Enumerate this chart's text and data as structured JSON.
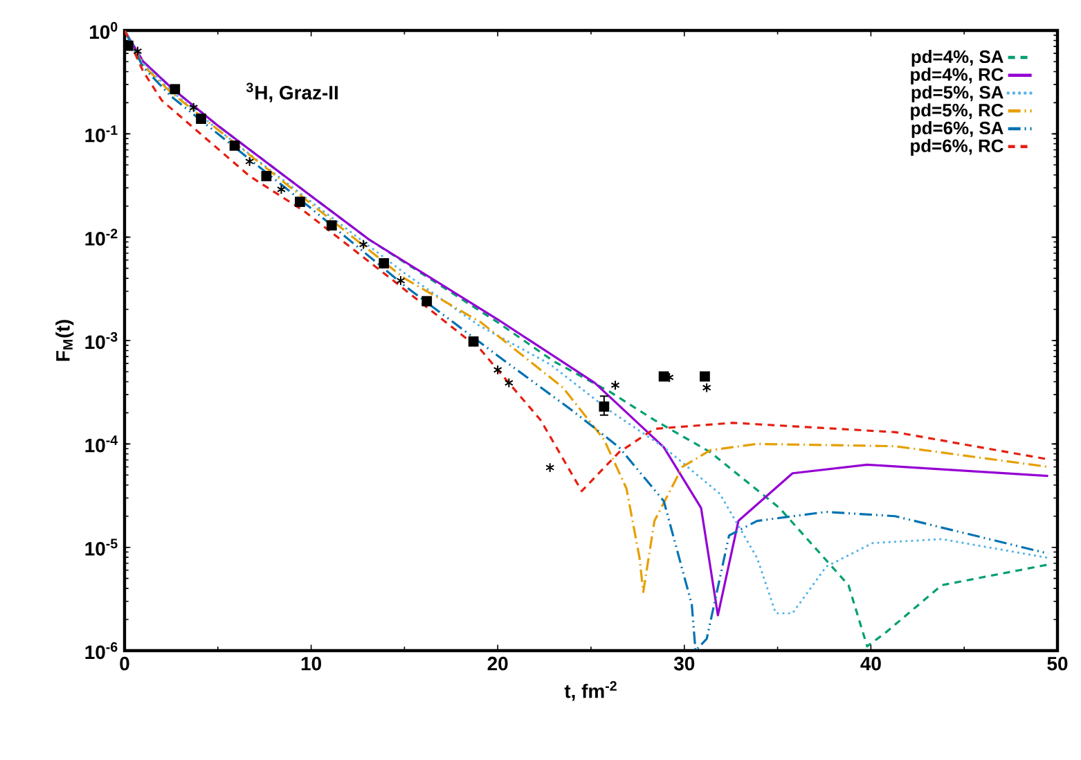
{
  "chart_data": {
    "type": "line",
    "xlabel": "t, fm$^{-2}$",
    "ylabel": "F$_{M}$(t)",
    "annotations": [
      "$^{3}$H, Graz-II"
    ],
    "log": "y",
    "legend": "top right",
    "grid": false,
    "xlim": [
      0,
      50
    ],
    "xticks": [
      0,
      10,
      20,
      30,
      40,
      50
    ],
    "ylim": [
      1e-06,
      1
    ],
    "yticks": [
      {
        "value": 1e-06,
        "label": "10$^{-6}$"
      },
      {
        "value": 1e-05,
        "label": "10$^{-5}$"
      },
      {
        "value": 0.0001,
        "label": "10$^{-4}$"
      },
      {
        "value": 0.001,
        "label": "10$^{-3}$"
      },
      {
        "value": 0.01,
        "label": "10$^{-2}$"
      },
      {
        "value": 0.1,
        "label": "10$^{-1}$"
      },
      {
        "value": 1,
        "label": "10$^{0}$"
      }
    ],
    "series": [
      {
        "name": "pd=4%, SA",
        "color": "#009e73",
        "line_style": "dashed",
        "x": [
          0,
          1,
          2.5,
          5,
          10,
          13.1,
          20,
          23,
          26,
          28.4,
          31.4,
          35.1,
          38.8,
          39.8,
          40.8,
          43.8,
          49.5
        ],
        "values": [
          1,
          0.5,
          0.28,
          0.12,
          0.025,
          0.0095,
          0.0015,
          0.00063,
          0.00032,
          0.00017,
          8.3e-05,
          2.4e-05,
          4.3e-06,
          1.1e-06,
          1.5e-06,
          4.3e-06,
          6.8e-06
        ]
      },
      {
        "name": "pd=4%, RC",
        "color": "#9400d3",
        "line_style": "solid",
        "x": [
          0,
          1,
          2.5,
          5,
          10,
          13.1,
          20,
          25.2,
          28.9,
          30.9,
          31.8,
          32.9,
          35.8,
          39.8,
          49.5
        ],
        "values": [
          1,
          0.5,
          0.28,
          0.12,
          0.025,
          0.0095,
          0.0016,
          0.00039,
          9.3e-05,
          2.4e-05,
          2.2e-06,
          1.8e-05,
          5.2e-05,
          6.3e-05,
          4.9e-05
        ]
      },
      {
        "name": "pd=5%, SA",
        "color": "#56b4e9",
        "line_style": "dotted",
        "x": [
          0,
          1,
          2.5,
          5,
          10,
          15,
          19,
          22.8,
          26,
          28.9,
          31.9,
          33.9,
          34.9,
          35.8,
          37.6,
          40.1,
          43.8,
          49.5
        ],
        "values": [
          1,
          0.48,
          0.26,
          0.11,
          0.022,
          0.0045,
          0.0014,
          0.00059,
          0.00021,
          9.3e-05,
          3.3e-05,
          7.9e-06,
          2.3e-06,
          2.3e-06,
          6.5e-06,
          1.1e-05,
          1.2e-05,
          7.9e-06
        ]
      },
      {
        "name": "pd=5%, RC",
        "color": "#e69f00",
        "line_style": "dashdot",
        "x": [
          0,
          1,
          2.5,
          5,
          10,
          15,
          19.1,
          23.5,
          25.7,
          26.9,
          27.6,
          27.8,
          28.4,
          29.9,
          31.4,
          33.9,
          41.3,
          49.5
        ],
        "values": [
          1,
          0.46,
          0.25,
          0.11,
          0.021,
          0.004,
          0.0015,
          0.00035,
          0.00011,
          3.7e-05,
          7.9e-06,
          3.7e-06,
          1.8e-05,
          6e-05,
          8.7e-05,
          0.0001,
          9.5e-05,
          6e-05
        ]
      },
      {
        "name": "pd=6%, SA",
        "color": "#0072b2",
        "line_style": "dashdotdot",
        "x": [
          0,
          1,
          2.5,
          5,
          10,
          15,
          20.3,
          24,
          26.5,
          28.9,
          30.4,
          30.6,
          31.2,
          32.4,
          33.9,
          37.6,
          41.3,
          49.5
        ],
        "values": [
          1,
          0.44,
          0.23,
          0.1,
          0.019,
          0.0034,
          0.00065,
          0.00021,
          9.3e-05,
          2.8e-05,
          2.8e-06,
          1e-06,
          1.3e-06,
          1.3e-05,
          1.8e-05,
          2.2e-05,
          2e-05,
          8.7e-06
        ]
      },
      {
        "name": "pd=6%, RC",
        "color": "#e51e10",
        "line_style": "dashed",
        "x": [
          0,
          1,
          2,
          6.7,
          9.6,
          14.1,
          19.1,
          20,
          22.3,
          24.5,
          26.5,
          28.4,
          32.6,
          41.3,
          49.5
        ],
        "values": [
          1,
          0.4,
          0.21,
          0.039,
          0.018,
          0.0042,
          0.00081,
          0.00052,
          0.00017,
          3.5e-05,
          8.3e-05,
          0.00014,
          0.00016,
          0.00013,
          7.1e-05
        ]
      },
      {
        "type": "scatter",
        "marker": "square",
        "color": "#000000",
        "x": [
          0.2,
          2.7,
          4.1,
          5.9,
          7.6,
          9.4,
          11.1,
          13.9,
          16.2,
          18.7,
          25.7,
          28.9,
          31.1
        ],
        "values": [
          0.71,
          0.27,
          0.14,
          0.077,
          0.039,
          0.022,
          0.013,
          0.0056,
          0.0024,
          0.00098,
          0.00023,
          0.00045,
          0.00045
        ],
        "errors": [
          null,
          null,
          null,
          null,
          null,
          null,
          null,
          null,
          null,
          null,
          [
            0.00019,
            0.00029
          ],
          null,
          null
        ]
      },
      {
        "type": "scatter",
        "marker": "cross",
        "color": "#000000",
        "x": [
          0.7,
          3.7,
          6.7,
          8.4,
          12.8,
          14.8,
          20,
          20.6,
          22.8,
          26.3,
          29.2,
          31.2
        ],
        "values": [
          0.63,
          0.18,
          0.054,
          0.029,
          0.0085,
          0.0038,
          0.00052,
          0.00039,
          5.9e-05,
          0.00037,
          0.00044,
          0.00035
        ]
      }
    ]
  }
}
